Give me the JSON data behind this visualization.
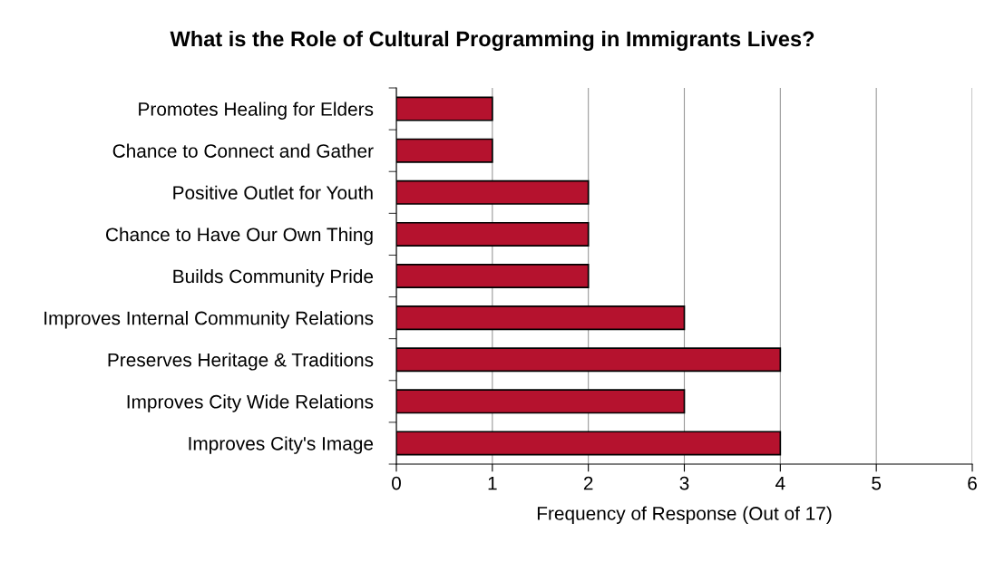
{
  "chart_data": {
    "type": "bar",
    "orientation": "horizontal",
    "title": "What is the Role of Cultural Programming in Immigrants Lives?",
    "xlabel": "Frequency of Response (Out of 17)",
    "categories": [
      "Promotes Healing for Elders",
      "Chance to Connect and Gather",
      "Positive Outlet for Youth",
      "Chance to Have Our Own Thing",
      "Builds Community Pride",
      "Improves Internal Community Relations",
      "Preserves Heritage & Traditions",
      "Improves City Wide Relations",
      "Improves City's Image"
    ],
    "values": [
      1,
      1,
      2,
      2,
      2,
      3,
      4,
      3,
      4
    ],
    "color": "#b5122e",
    "xlim": [
      0,
      6
    ],
    "xticks": [
      0,
      1,
      2,
      3,
      4,
      5,
      6
    ],
    "grid": "x"
  }
}
